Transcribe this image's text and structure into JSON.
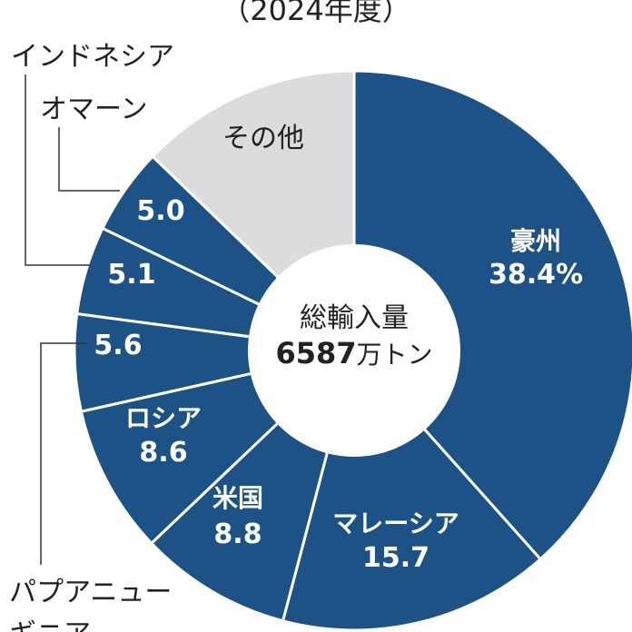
{
  "chart_data": {
    "type": "pie",
    "subtitle": "（2024年度）",
    "center_label": "総輸入量",
    "center_value_number": "6587",
    "center_value_unit": "万トン",
    "unit": "%",
    "slices": [
      {
        "name": "豪州",
        "value": 38.4,
        "label": "38.4%",
        "color": "#1d5286"
      },
      {
        "name": "マレーシア",
        "value": 15.7,
        "label": "15.7",
        "color": "#1d5286"
      },
      {
        "name": "米国",
        "value": 8.8,
        "label": "8.8",
        "color": "#1d5286"
      },
      {
        "name": "ロシア",
        "value": 8.6,
        "label": "8.6",
        "color": "#1d5286"
      },
      {
        "name": "パプアニューギニア",
        "value": 5.6,
        "label": "5.6",
        "color": "#1d5286"
      },
      {
        "name": "インドネシア",
        "value": 5.1,
        "label": "5.1",
        "color": "#1d5286"
      },
      {
        "name": "オマーン",
        "value": 5.0,
        "label": "5.0",
        "color": "#1d5286"
      },
      {
        "name": "その他",
        "value": 12.8,
        "label": "",
        "color": "#dcdcdc"
      }
    ],
    "external_labels": {
      "indonesia": "インドネシア",
      "oman": "オマーン",
      "png_line1": "パプアニューギ",
      "png_line1_full": "パプアニューー",
      "png_a": "パプアニュー",
      "png_b": "ギニア"
    }
  }
}
